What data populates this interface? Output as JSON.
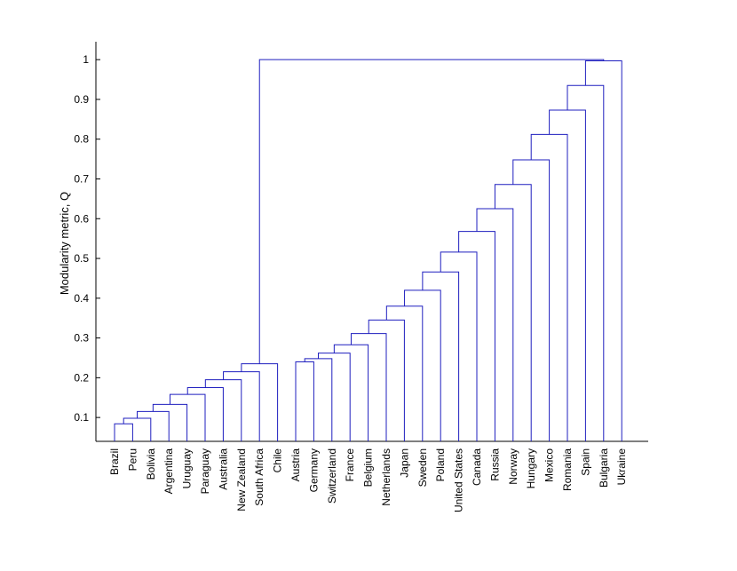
{
  "chart_data": {
    "type": "dendrogram",
    "title": "",
    "xlabel": "",
    "ylabel": "Modularity metric, Q",
    "ylim": [
      0.04,
      1.045
    ],
    "yticks": [
      0.1,
      0.2,
      0.3,
      0.4,
      0.5,
      0.6,
      0.7,
      0.8,
      0.9,
      1
    ],
    "ytick_labels": [
      "0.1",
      "0.2",
      "0.3",
      "0.4",
      "0.5",
      "0.6",
      "0.7",
      "0.8",
      "0.9",
      "1"
    ],
    "grid": false,
    "line_color": "#1f1fbf",
    "leaves": [
      "Brazil",
      "Peru",
      "Bolivia",
      "Argentina",
      "Uruguay",
      "Paraguay",
      "Australia",
      "New Zealand",
      "South Africa",
      "Chile",
      "Austria",
      "Germany",
      "Switzerland",
      "France",
      "Belgium",
      "Netherlands",
      "Japan",
      "Sweden",
      "Poland",
      "United States",
      "Canada",
      "Russia",
      "Norway",
      "Hungary",
      "Mexico",
      "Romania",
      "Spain",
      "Bulgaria",
      "Ukraine"
    ],
    "merges": [
      {
        "left": 0,
        "right": 1,
        "height": 0.084
      },
      {
        "left": "m0",
        "right": 2,
        "height": 0.098
      },
      {
        "left": "m1",
        "right": 3,
        "height": 0.115
      },
      {
        "left": "m2",
        "right": 4,
        "height": 0.133
      },
      {
        "left": "m3",
        "right": 5,
        "height": 0.158
      },
      {
        "left": "m4",
        "right": 6,
        "height": 0.175
      },
      {
        "left": "m5",
        "right": 7,
        "height": 0.195
      },
      {
        "left": "m6",
        "right": 8,
        "height": 0.215
      },
      {
        "left": "m7",
        "right": 9,
        "height": 0.235
      },
      {
        "left": 10,
        "right": 11,
        "height": 0.24
      },
      {
        "left": "m9",
        "right": 12,
        "height": 0.248
      },
      {
        "left": "m10",
        "right": 13,
        "height": 0.262
      },
      {
        "left": "m11",
        "right": 14,
        "height": 0.283
      },
      {
        "left": "m12",
        "right": 15,
        "height": 0.311
      },
      {
        "left": "m13",
        "right": 16,
        "height": 0.345
      },
      {
        "left": "m14",
        "right": 17,
        "height": 0.38
      },
      {
        "left": "m15",
        "right": 18,
        "height": 0.42
      },
      {
        "left": "m16",
        "right": 19,
        "height": 0.466
      },
      {
        "left": "m17",
        "right": 20,
        "height": 0.516
      },
      {
        "left": "m18",
        "right": 21,
        "height": 0.568
      },
      {
        "left": "m19",
        "right": 22,
        "height": 0.625
      },
      {
        "left": "m20",
        "right": 23,
        "height": 0.686
      },
      {
        "left": "m21",
        "right": 24,
        "height": 0.748
      },
      {
        "left": "m22",
        "right": 25,
        "height": 0.812
      },
      {
        "left": "m23",
        "right": 26,
        "height": 0.873
      },
      {
        "left": "m24",
        "right": 27,
        "height": 0.935
      },
      {
        "left": "m25",
        "right": 28,
        "height": 0.997
      },
      {
        "left": "m8",
        "right": "m26",
        "height": 1.0
      }
    ]
  }
}
